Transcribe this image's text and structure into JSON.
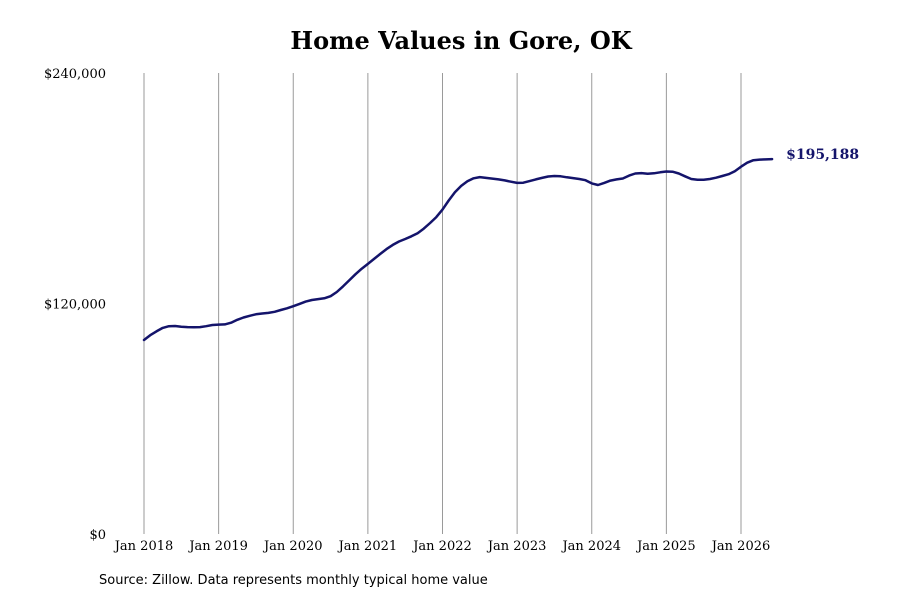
{
  "chart_data": {
    "type": "line",
    "title": "Home Values in Gore, OK",
    "xlabel": "",
    "ylabel": "",
    "ylim": [
      0,
      240000
    ],
    "yticks": [
      {
        "value": 0,
        "label": "$0"
      },
      {
        "value": 120000,
        "label": "$120,000"
      },
      {
        "value": 240000,
        "label": "$240,000"
      }
    ],
    "xticks": [
      {
        "value": "2018-01",
        "label": "Jan 2018"
      },
      {
        "value": "2019-01",
        "label": "Jan 2019"
      },
      {
        "value": "2020-01",
        "label": "Jan 2020"
      },
      {
        "value": "2021-01",
        "label": "Jan 2021"
      },
      {
        "value": "2022-01",
        "label": "Jan 2022"
      },
      {
        "value": "2023-01",
        "label": "Jan 2023"
      },
      {
        "value": "2024-01",
        "label": "Jan 2024"
      },
      {
        "value": "2025-01",
        "label": "Jan 2025"
      },
      {
        "value": "2026-01",
        "label": "Jan 2026"
      }
    ],
    "grid": "vertical",
    "line_color": "#14146b",
    "end_label": "$195,188",
    "series": [
      {
        "points": [
          [
            "2018-01",
            101000
          ],
          [
            "2018-02",
            103500
          ],
          [
            "2018-03",
            105500
          ],
          [
            "2018-04",
            107300
          ],
          [
            "2018-05",
            108200
          ],
          [
            "2018-06",
            108300
          ],
          [
            "2018-07",
            107900
          ],
          [
            "2018-08",
            107700
          ],
          [
            "2018-09",
            107600
          ],
          [
            "2018-10",
            107700
          ],
          [
            "2018-11",
            108200
          ],
          [
            "2018-12",
            108800
          ],
          [
            "2019-01",
            109000
          ],
          [
            "2019-02",
            109100
          ],
          [
            "2019-03",
            110000
          ],
          [
            "2019-04",
            111500
          ],
          [
            "2019-05",
            112700
          ],
          [
            "2019-06",
            113600
          ],
          [
            "2019-07",
            114400
          ],
          [
            "2019-08",
            114800
          ],
          [
            "2019-09",
            115100
          ],
          [
            "2019-10",
            115700
          ],
          [
            "2019-11",
            116600
          ],
          [
            "2019-12",
            117500
          ],
          [
            "2020-01",
            118600
          ],
          [
            "2020-02",
            119800
          ],
          [
            "2020-03",
            121000
          ],
          [
            "2020-04",
            121800
          ],
          [
            "2020-05",
            122300
          ],
          [
            "2020-06",
            122700
          ],
          [
            "2020-07",
            123800
          ],
          [
            "2020-08",
            126000
          ],
          [
            "2020-09",
            128900
          ],
          [
            "2020-10",
            132000
          ],
          [
            "2020-11",
            135200
          ],
          [
            "2020-12",
            138100
          ],
          [
            "2021-01",
            140600
          ],
          [
            "2021-02",
            143200
          ],
          [
            "2021-03",
            145800
          ],
          [
            "2021-04",
            148300
          ],
          [
            "2021-05",
            150500
          ],
          [
            "2021-06",
            152300
          ],
          [
            "2021-07",
            153600
          ],
          [
            "2021-08",
            155000
          ],
          [
            "2021-09",
            156600
          ],
          [
            "2021-10",
            159000
          ],
          [
            "2021-11",
            161900
          ],
          [
            "2021-12",
            165000
          ],
          [
            "2022-01",
            168900
          ],
          [
            "2022-02",
            173600
          ],
          [
            "2022-03",
            177900
          ],
          [
            "2022-04",
            181200
          ],
          [
            "2022-05",
            183600
          ],
          [
            "2022-06",
            185200
          ],
          [
            "2022-07",
            185800
          ],
          [
            "2022-08",
            185400
          ],
          [
            "2022-09",
            185000
          ],
          [
            "2022-10",
            184600
          ],
          [
            "2022-11",
            184100
          ],
          [
            "2022-12",
            183400
          ],
          [
            "2023-01",
            182800
          ],
          [
            "2023-02",
            182900
          ],
          [
            "2023-03",
            183700
          ],
          [
            "2023-04",
            184600
          ],
          [
            "2023-05",
            185400
          ],
          [
            "2023-06",
            186100
          ],
          [
            "2023-07",
            186400
          ],
          [
            "2023-08",
            186200
          ],
          [
            "2023-09",
            185700
          ],
          [
            "2023-10",
            185300
          ],
          [
            "2023-11",
            184800
          ],
          [
            "2023-12",
            184200
          ],
          [
            "2024-01",
            182500
          ],
          [
            "2024-02",
            181700
          ],
          [
            "2024-03",
            182800
          ],
          [
            "2024-04",
            184000
          ],
          [
            "2024-05",
            184600
          ],
          [
            "2024-06",
            185100
          ],
          [
            "2024-07",
            186600
          ],
          [
            "2024-08",
            187700
          ],
          [
            "2024-09",
            187900
          ],
          [
            "2024-10",
            187600
          ],
          [
            "2024-11",
            187800
          ],
          [
            "2024-12",
            188300
          ],
          [
            "2025-01",
            188700
          ],
          [
            "2025-02",
            188600
          ],
          [
            "2025-03",
            187700
          ],
          [
            "2025-04",
            186200
          ],
          [
            "2025-05",
            184800
          ],
          [
            "2025-06",
            184400
          ],
          [
            "2025-07",
            184400
          ],
          [
            "2025-08",
            184800
          ],
          [
            "2025-09",
            185500
          ],
          [
            "2025-10",
            186400
          ],
          [
            "2025-11",
            187300
          ],
          [
            "2025-12",
            188900
          ],
          [
            "2026-01",
            191200
          ],
          [
            "2026-02",
            193300
          ],
          [
            "2026-03",
            194600
          ],
          [
            "2026-04",
            194900
          ],
          [
            "2026-05",
            195000
          ],
          [
            "2026-06",
            195188
          ]
        ]
      }
    ]
  },
  "source_note": "Source: Zillow. Data represents monthly typical home value"
}
